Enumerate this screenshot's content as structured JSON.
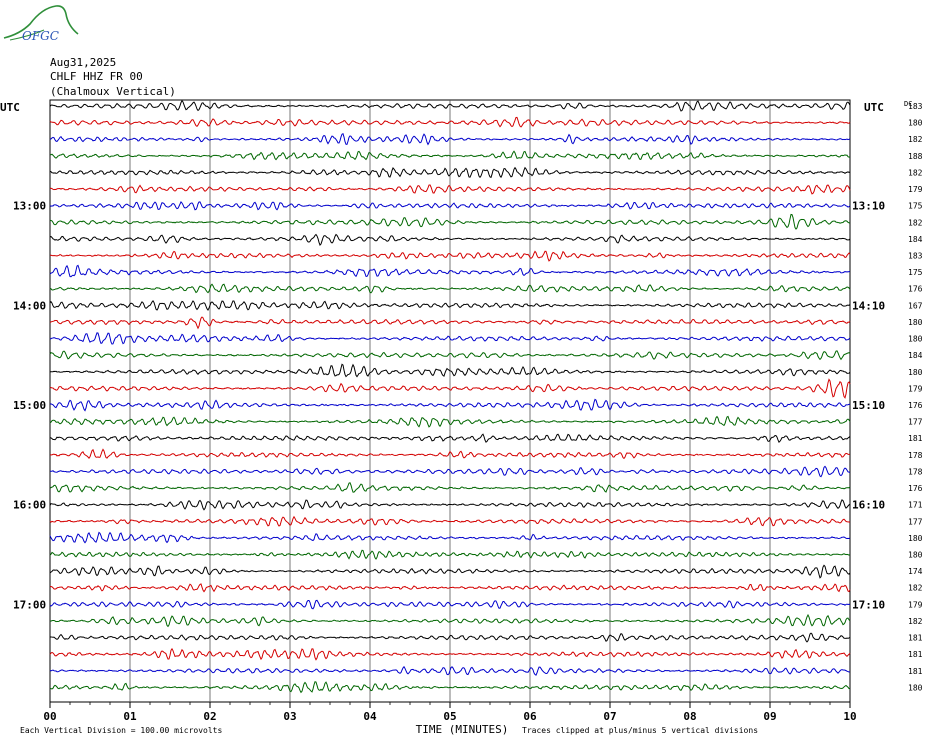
{
  "logo": {
    "text": "OFGC"
  },
  "header": {
    "date": "Aug31,2025",
    "station": "CHLF HHZ FR 00",
    "location": "(Chalmoux Vertical)"
  },
  "chart_data": {
    "type": "line",
    "title": "",
    "xlabel": "TIME (MINUTES)",
    "x_tick_labels": [
      "00",
      "01",
      "02",
      "03",
      "04",
      "05",
      "06",
      "07",
      "08",
      "09",
      "10"
    ],
    "xlim": [
      0,
      10
    ],
    "left_axis_label": "UTC",
    "right_axis_label": "UTC",
    "dc_label": "DC",
    "left_hour_labels": [
      {
        "row": 6,
        "text": "13:00"
      },
      {
        "row": 12,
        "text": "14:00"
      },
      {
        "row": 18,
        "text": "15:00"
      },
      {
        "row": 24,
        "text": "16:00"
      },
      {
        "row": 30,
        "text": "17:00"
      }
    ],
    "right_hour_labels": [
      {
        "row": 6,
        "text": "13:10"
      },
      {
        "row": 12,
        "text": "14:10"
      },
      {
        "row": 18,
        "text": "15:10"
      },
      {
        "row": 24,
        "text": "16:10"
      },
      {
        "row": 30,
        "text": "17:10"
      }
    ],
    "trace_colors": [
      "#000000",
      "#d40000",
      "#0000cc",
      "#006600"
    ],
    "dc_offsets": [
      "183",
      "180",
      "182",
      "188",
      "182",
      "179",
      "175",
      "182",
      "184",
      "183",
      "175",
      "176",
      "167",
      "180",
      "180",
      "184",
      "180",
      "179",
      "176",
      "177",
      "181",
      "178",
      "178",
      "176",
      "171",
      "177",
      "180",
      "180",
      "174",
      "182",
      "179",
      "182",
      "181",
      "181",
      "181",
      "180"
    ],
    "footer_left": "Each Vertical Division =  100.00 microvolts",
    "footer_right": "Traces clipped at plus/minus 5 vertical divisions"
  }
}
